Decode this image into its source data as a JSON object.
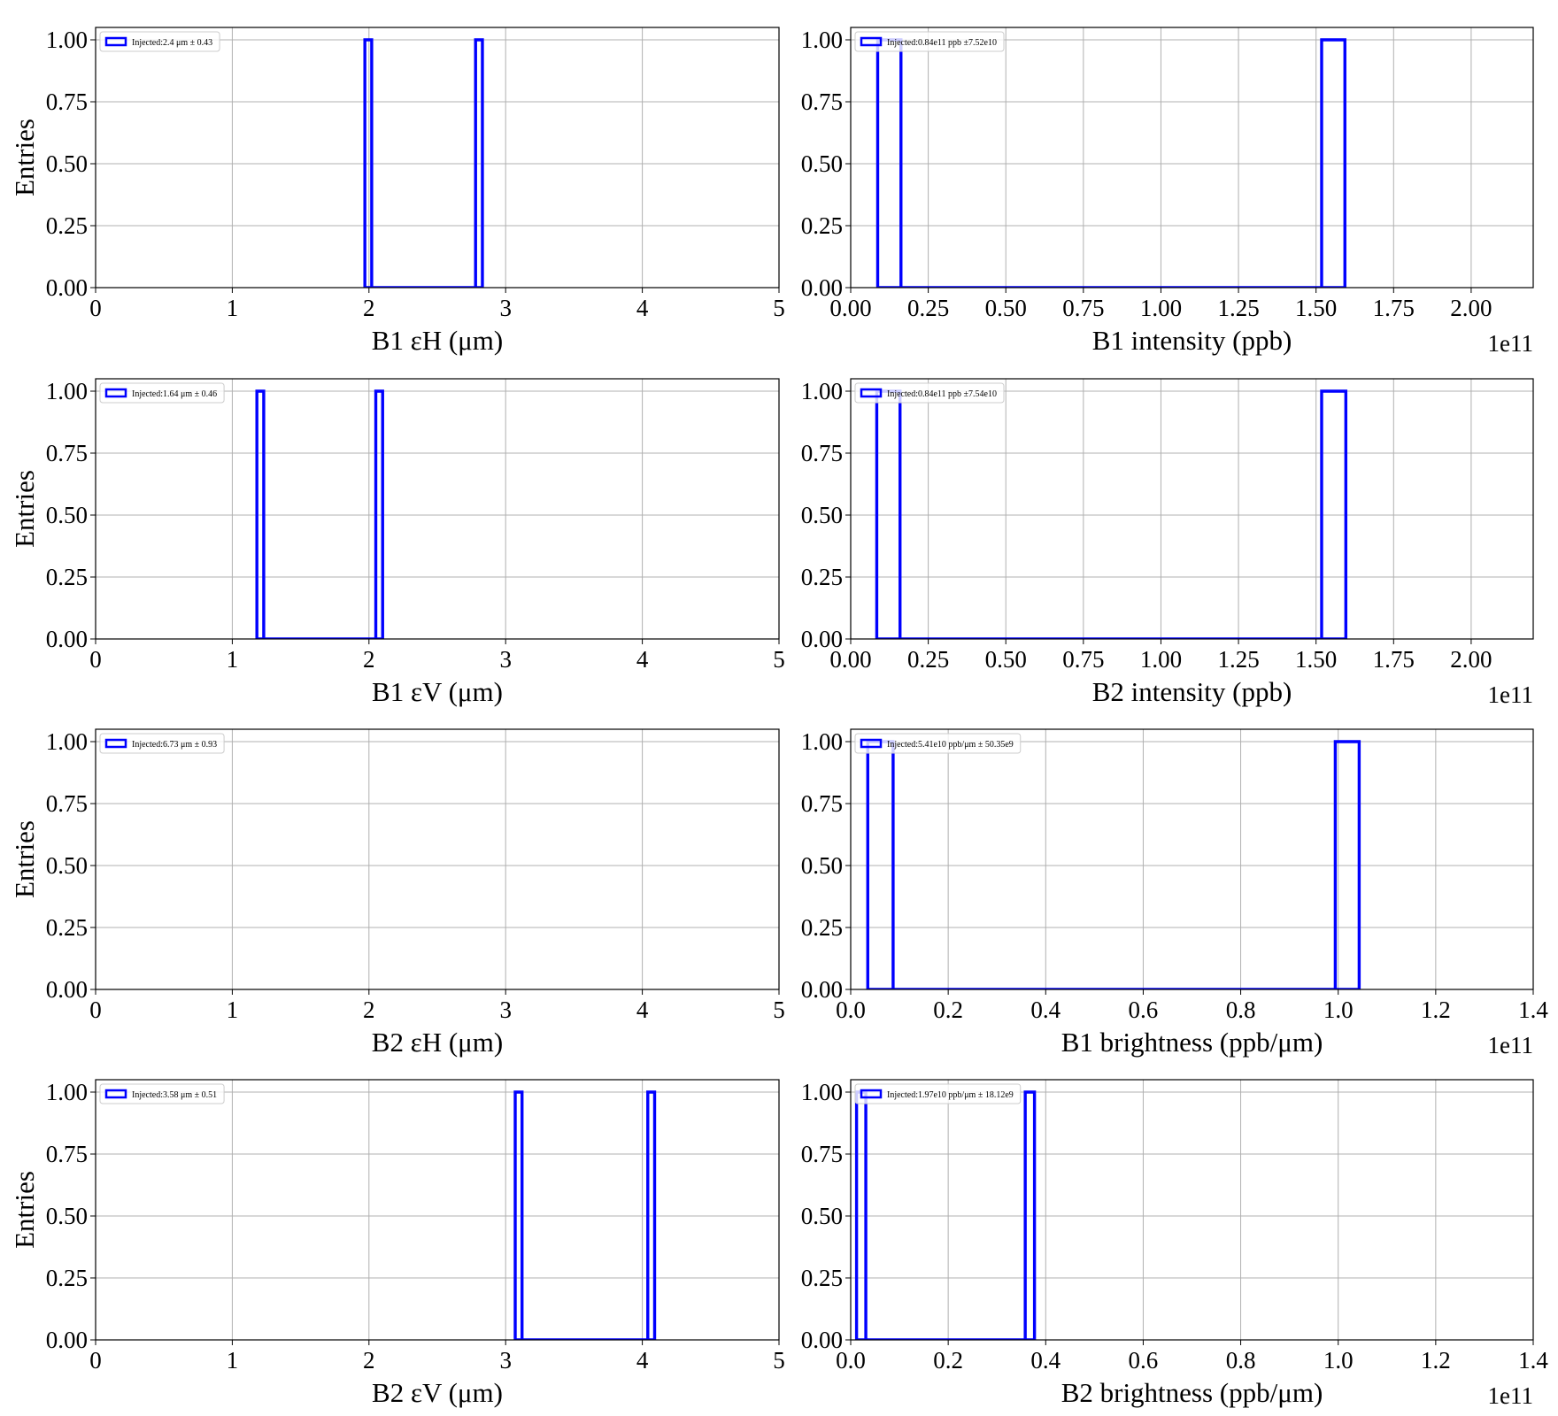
{
  "chart_data": [
    {
      "type": "histogram",
      "xlabel": "B1 εH (μm)",
      "ylabel": "Entries",
      "legend": "Injected:2.4 μm ± 0.43",
      "color": "#0000ff",
      "bins": [
        1.97,
        2.02,
        2.78,
        2.83
      ],
      "counts": [
        1,
        0,
        1
      ],
      "xlim": [
        0,
        5
      ],
      "ylim": [
        0,
        1.05
      ],
      "xticks": [
        0,
        1,
        2,
        3,
        4,
        5
      ],
      "yticks": [
        {
          "value": 0,
          "label": "0.00"
        },
        {
          "value": 0.25,
          "label": "0.25"
        },
        {
          "value": 0.5,
          "label": "0.50"
        },
        {
          "value": 0.75,
          "label": "0.75"
        },
        {
          "value": 1,
          "label": "1.00"
        }
      ],
      "grid": true
    },
    {
      "type": "histogram",
      "xlabel": "B1 intensity (ppb)",
      "legend": "Injected:0.84e11 ppb ±7.52e10",
      "offset_text": "1e11",
      "color": "#0000ff",
      "bins": [
        0.087,
        0.162,
        1.518,
        1.593
      ],
      "counts": [
        1,
        0,
        1
      ],
      "xlim": [
        0,
        2.2
      ],
      "ylim": [
        0,
        1.05
      ],
      "xticks": [
        {
          "value": 0,
          "label": "0.00"
        },
        {
          "value": 0.25,
          "label": "0.25"
        },
        {
          "value": 0.5,
          "label": "0.50"
        },
        {
          "value": 0.75,
          "label": "0.75"
        },
        {
          "value": 1,
          "label": "1.00"
        },
        {
          "value": 1.25,
          "label": "1.25"
        },
        {
          "value": 1.5,
          "label": "1.50"
        },
        {
          "value": 1.75,
          "label": "1.75"
        },
        {
          "value": 2,
          "label": "2.00"
        }
      ],
      "yticks": [
        {
          "value": 0,
          "label": "0.00"
        },
        {
          "value": 0.25,
          "label": "0.25"
        },
        {
          "value": 0.5,
          "label": "0.50"
        },
        {
          "value": 0.75,
          "label": "0.75"
        },
        {
          "value": 1,
          "label": "1.00"
        }
      ],
      "grid": true
    },
    {
      "type": "histogram",
      "xlabel": "B1 εV (μm)",
      "ylabel": "Entries",
      "legend": "Injected:1.64 μm ± 0.46",
      "color": "#0000ff",
      "bins": [
        1.18,
        1.23,
        2.05,
        2.1
      ],
      "counts": [
        1,
        0,
        1
      ],
      "xlim": [
        0,
        5
      ],
      "ylim": [
        0,
        1.05
      ],
      "xticks": [
        0,
        1,
        2,
        3,
        4,
        5
      ],
      "yticks": [
        {
          "value": 0,
          "label": "0.00"
        },
        {
          "value": 0.25,
          "label": "0.25"
        },
        {
          "value": 0.5,
          "label": "0.50"
        },
        {
          "value": 0.75,
          "label": "0.75"
        },
        {
          "value": 1,
          "label": "1.00"
        }
      ],
      "grid": true
    },
    {
      "type": "histogram",
      "xlabel": "B2 intensity (ppb)",
      "legend": "Injected:0.84e11 ppb ±7.54e10",
      "offset_text": "1e11",
      "color": "#0000ff",
      "bins": [
        0.084,
        0.159,
        1.518,
        1.596
      ],
      "counts": [
        1,
        0,
        1
      ],
      "xlim": [
        0,
        2.2
      ],
      "ylim": [
        0,
        1.05
      ],
      "xticks": [
        {
          "value": 0,
          "label": "0.00"
        },
        {
          "value": 0.25,
          "label": "0.25"
        },
        {
          "value": 0.5,
          "label": "0.50"
        },
        {
          "value": 0.75,
          "label": "0.75"
        },
        {
          "value": 1,
          "label": "1.00"
        },
        {
          "value": 1.25,
          "label": "1.25"
        },
        {
          "value": 1.5,
          "label": "1.50"
        },
        {
          "value": 1.75,
          "label": "1.75"
        },
        {
          "value": 2,
          "label": "2.00"
        }
      ],
      "yticks": [
        {
          "value": 0,
          "label": "0.00"
        },
        {
          "value": 0.25,
          "label": "0.25"
        },
        {
          "value": 0.5,
          "label": "0.50"
        },
        {
          "value": 0.75,
          "label": "0.75"
        },
        {
          "value": 1,
          "label": "1.00"
        }
      ],
      "grid": true
    },
    {
      "type": "histogram",
      "xlabel": "B2 εH (μm)",
      "ylabel": "Entries",
      "legend": "Injected:6.73 μm ± 0.93",
      "color": "#0000ff",
      "xlim": [
        0,
        5
      ],
      "ylim": [
        0,
        1.05
      ],
      "xticks": [
        0,
        1,
        2,
        3,
        4,
        5
      ],
      "yticks": [
        {
          "value": 0,
          "label": "0.00"
        },
        {
          "value": 0.25,
          "label": "0.25"
        },
        {
          "value": 0.5,
          "label": "0.50"
        },
        {
          "value": 0.75,
          "label": "0.75"
        },
        {
          "value": 1,
          "label": "1.00"
        }
      ],
      "grid": true
    },
    {
      "type": "histogram",
      "xlabel": "B1 brightness (ppb/μm)",
      "legend": "Injected:5.41e10 ppb/μm ± 50.35e9",
      "offset_text": "1e11",
      "color": "#0000ff",
      "bins": [
        0.035,
        0.087,
        0.994,
        1.043
      ],
      "counts": [
        1,
        0,
        1
      ],
      "xlim": [
        0,
        1.4
      ],
      "ylim": [
        0,
        1.05
      ],
      "xticks": [
        {
          "value": 0,
          "label": "0.0"
        },
        0.2,
        0.4,
        0.6,
        0.8,
        {
          "value": 1,
          "label": "1.0"
        },
        1.2,
        1.4
      ],
      "yticks": [
        {
          "value": 0,
          "label": "0.00"
        },
        {
          "value": 0.25,
          "label": "0.25"
        },
        {
          "value": 0.5,
          "label": "0.50"
        },
        {
          "value": 0.75,
          "label": "0.75"
        },
        {
          "value": 1,
          "label": "1.00"
        }
      ],
      "grid": true
    },
    {
      "type": "histogram",
      "xlabel": "B2 εV (μm)",
      "ylabel": "Entries",
      "legend": "Injected:3.58 μm ± 0.51",
      "color": "#0000ff",
      "bins": [
        3.07,
        3.12,
        4.04,
        4.09
      ],
      "counts": [
        1,
        0,
        1
      ],
      "xlim": [
        0,
        5
      ],
      "ylim": [
        0,
        1.05
      ],
      "xticks": [
        0,
        1,
        2,
        3,
        4,
        5
      ],
      "yticks": [
        {
          "value": 0,
          "label": "0.00"
        },
        {
          "value": 0.25,
          "label": "0.25"
        },
        {
          "value": 0.5,
          "label": "0.50"
        },
        {
          "value": 0.75,
          "label": "0.75"
        },
        {
          "value": 1,
          "label": "1.00"
        }
      ],
      "grid": true
    },
    {
      "type": "histogram",
      "xlabel": "B2 brightness (ppb/μm)",
      "legend": "Injected:1.97e10 ppb/μm ± 18.12e9",
      "offset_text": "1e11",
      "color": "#0000ff",
      "bins": [
        0.012,
        0.031,
        0.358,
        0.377
      ],
      "counts": [
        1,
        0,
        1
      ],
      "xlim": [
        0,
        1.4
      ],
      "ylim": [
        0,
        1.05
      ],
      "xticks": [
        {
          "value": 0,
          "label": "0.0"
        },
        0.2,
        0.4,
        0.6,
        0.8,
        {
          "value": 1,
          "label": "1.0"
        },
        1.2,
        1.4
      ],
      "yticks": [
        {
          "value": 0,
          "label": "0.00"
        },
        {
          "value": 0.25,
          "label": "0.25"
        },
        {
          "value": 0.5,
          "label": "0.50"
        },
        {
          "value": 0.75,
          "label": "0.75"
        },
        {
          "value": 1,
          "label": "1.00"
        }
      ],
      "grid": true
    }
  ]
}
